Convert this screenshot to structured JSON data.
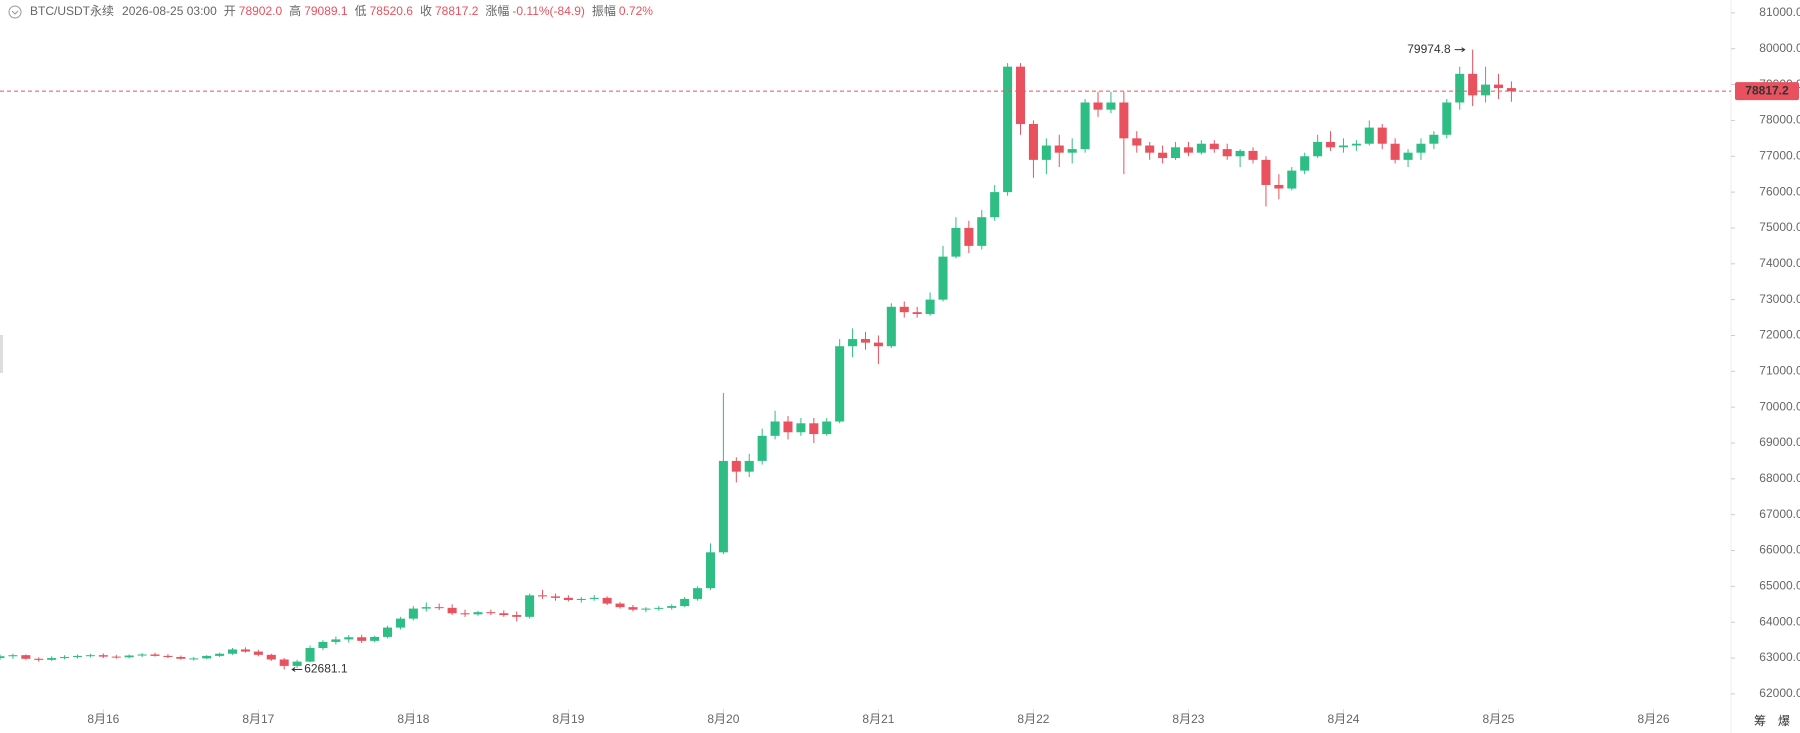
{
  "chart_data": {
    "type": "candlestick",
    "header": {
      "symbol": "BTC/USDT永续",
      "time": "2026-08-25 03:00",
      "fields": [
        {
          "label": "开",
          "value": "78902.0"
        },
        {
          "label": "高",
          "value": "79089.1"
        },
        {
          "label": "低",
          "value": "78520.6"
        },
        {
          "label": "收",
          "value": "78817.2"
        },
        {
          "label": "涨幅",
          "value": "-0.11%(-84.9)"
        },
        {
          "label": "振幅",
          "value": "0.72%"
        }
      ]
    },
    "up_color": "#2ebd85",
    "down_color": "#e8515d",
    "xlim": [
      344,
      612
    ],
    "xticks": [
      {
        "value": 360,
        "label": "8月16"
      },
      {
        "value": 384,
        "label": "8月17"
      },
      {
        "value": 408,
        "label": "8月18"
      },
      {
        "value": 432,
        "label": "8月19"
      },
      {
        "value": 456,
        "label": "8月20"
      },
      {
        "value": 480,
        "label": "8月21"
      },
      {
        "value": 504,
        "label": "8月22"
      },
      {
        "value": 528,
        "label": "8月23"
      },
      {
        "value": 552,
        "label": "8月24"
      },
      {
        "value": 576,
        "label": "8月25"
      },
      {
        "value": 600,
        "label": "8月26"
      }
    ],
    "ylim": [
      61690,
      81360
    ],
    "yticks": [
      {
        "value": 62000,
        "label": "62000.0"
      },
      {
        "value": 63000,
        "label": "63000.0"
      },
      {
        "value": 64000,
        "label": "64000.0"
      },
      {
        "value": 65000,
        "label": "65000.0"
      },
      {
        "value": 66000,
        "label": "66000.0"
      },
      {
        "value": 67000,
        "label": "67000.0"
      },
      {
        "value": 68000,
        "label": "68000.0"
      },
      {
        "value": 69000,
        "label": "69000.0"
      },
      {
        "value": 70000,
        "label": "70000.0"
      },
      {
        "value": 71000,
        "label": "71000.0"
      },
      {
        "value": 72000,
        "label": "72000.0"
      },
      {
        "value": 73000,
        "label": "73000.0"
      },
      {
        "value": 74000,
        "label": "74000.0"
      },
      {
        "value": 75000,
        "label": "75000.0"
      },
      {
        "value": 76000,
        "label": "76000.0"
      },
      {
        "value": 77000,
        "label": "77000.0"
      },
      {
        "value": 78000,
        "label": "78000.0"
      },
      {
        "value": 79000,
        "label": "79000.0"
      },
      {
        "value": 80000,
        "label": "80000.0"
      },
      {
        "value": 81000,
        "label": "81000.0"
      }
    ],
    "last_price": 78817.2,
    "max_label": 79974.8,
    "min_label": 62681.1,
    "x": [
      344,
      346,
      348,
      350,
      352,
      354,
      356,
      358,
      360,
      362,
      364,
      366,
      368,
      370,
      372,
      374,
      376,
      378,
      380,
      382,
      384,
      386,
      388,
      390,
      392,
      394,
      396,
      398,
      400,
      402,
      404,
      406,
      408,
      410,
      412,
      414,
      416,
      418,
      420,
      422,
      424,
      426,
      428,
      430,
      432,
      434,
      436,
      438,
      440,
      442,
      444,
      446,
      448,
      450,
      452,
      454,
      456,
      458,
      460,
      462,
      464,
      466,
      468,
      470,
      472,
      474,
      476,
      478,
      480,
      482,
      484,
      486,
      488,
      490,
      492,
      494,
      496,
      498,
      500,
      502,
      504,
      506,
      508,
      510,
      512,
      514,
      516,
      518,
      520,
      522,
      524,
      526,
      528,
      530,
      532,
      534,
      536,
      538,
      540,
      542,
      544,
      546,
      548,
      550,
      552,
      554,
      556,
      558,
      560,
      562,
      564,
      566,
      568,
      570,
      572,
      574,
      576,
      578
    ],
    "candles": [
      [
        63000,
        63100,
        62950,
        63050
      ],
      [
        63050,
        63120,
        62980,
        63080
      ],
      [
        63080,
        63100,
        62950,
        62980
      ],
      [
        62980,
        63020,
        62900,
        62950
      ],
      [
        62950,
        63050,
        62920,
        63000
      ],
      [
        63000,
        63080,
        62960,
        63030
      ],
      [
        63030,
        63100,
        62990,
        63060
      ],
      [
        63060,
        63120,
        63020,
        63080
      ],
      [
        63080,
        63130,
        63000,
        63040
      ],
      [
        63040,
        63090,
        62980,
        63020
      ],
      [
        63020,
        63100,
        62990,
        63070
      ],
      [
        63070,
        63140,
        63030,
        63100
      ],
      [
        63100,
        63150,
        63040,
        63060
      ],
      [
        63060,
        63110,
        63000,
        63030
      ],
      [
        63030,
        63070,
        62960,
        62980
      ],
      [
        62980,
        63030,
        62930,
        62990
      ],
      [
        62990,
        63080,
        62970,
        63060
      ],
      [
        63060,
        63150,
        63030,
        63120
      ],
      [
        63120,
        63280,
        63090,
        63240
      ],
      [
        63240,
        63300,
        63150,
        63180
      ],
      [
        63180,
        63230,
        63050,
        63090
      ],
      [
        63090,
        63120,
        62920,
        62960
      ],
      [
        62960,
        63000,
        62681.1,
        62780
      ],
      [
        62780,
        62950,
        62720,
        62900
      ],
      [
        62900,
        63350,
        62880,
        63280
      ],
      [
        63280,
        63500,
        63220,
        63450
      ],
      [
        63450,
        63600,
        63380,
        63520
      ],
      [
        63520,
        63640,
        63430,
        63580
      ],
      [
        63580,
        63650,
        63420,
        63480
      ],
      [
        63480,
        63620,
        63440,
        63590
      ],
      [
        63590,
        63900,
        63550,
        63850
      ],
      [
        63850,
        64150,
        63800,
        64100
      ],
      [
        64100,
        64450,
        64050,
        64380
      ],
      [
        64380,
        64550,
        64300,
        64420
      ],
      [
        64420,
        64520,
        64340,
        64400
      ],
      [
        64400,
        64500,
        64200,
        64250
      ],
      [
        64250,
        64350,
        64150,
        64220
      ],
      [
        64220,
        64320,
        64180,
        64280
      ],
      [
        64280,
        64350,
        64200,
        64250
      ],
      [
        64250,
        64330,
        64150,
        64200
      ],
      [
        64200,
        64300,
        64020,
        64150
      ],
      [
        64150,
        64800,
        64100,
        64750
      ],
      [
        64750,
        64900,
        64650,
        64720
      ],
      [
        64720,
        64800,
        64600,
        64680
      ],
      [
        64680,
        64750,
        64580,
        64620
      ],
      [
        64620,
        64700,
        64550,
        64650
      ],
      [
        64650,
        64760,
        64600,
        64680
      ],
      [
        64680,
        64720,
        64480,
        64520
      ],
      [
        64520,
        64560,
        64380,
        64420
      ],
      [
        64420,
        64480,
        64300,
        64350
      ],
      [
        64350,
        64420,
        64280,
        64380
      ],
      [
        64380,
        64450,
        64320,
        64400
      ],
      [
        64400,
        64500,
        64350,
        64450
      ],
      [
        64450,
        64700,
        64420,
        64650
      ],
      [
        64650,
        65000,
        64600,
        64950
      ],
      [
        64950,
        66200,
        64900,
        65950
      ],
      [
        65950,
        70400,
        65900,
        68500
      ],
      [
        68500,
        68600,
        67900,
        68200
      ],
      [
        68200,
        68700,
        68050,
        68500
      ],
      [
        68500,
        69400,
        68400,
        69200
      ],
      [
        69200,
        69900,
        69100,
        69600
      ],
      [
        69600,
        69750,
        69100,
        69300
      ],
      [
        69300,
        69700,
        69200,
        69550
      ],
      [
        69550,
        69700,
        69000,
        69250
      ],
      [
        69250,
        69700,
        69200,
        69600
      ],
      [
        69600,
        71900,
        69550,
        71700
      ],
      [
        71700,
        72200,
        71400,
        71900
      ],
      [
        71900,
        72100,
        71600,
        71800
      ],
      [
        71800,
        72000,
        71200,
        71700
      ],
      [
        71700,
        72900,
        71650,
        72800
      ],
      [
        72800,
        72950,
        72500,
        72650
      ],
      [
        72650,
        72800,
        72500,
        72600
      ],
      [
        72600,
        73200,
        72550,
        73000
      ],
      [
        73000,
        74500,
        72950,
        74200
      ],
      [
        74200,
        75300,
        74150,
        75000
      ],
      [
        75000,
        75200,
        74300,
        74500
      ],
      [
        74500,
        75500,
        74400,
        75300
      ],
      [
        75300,
        76200,
        75200,
        76000
      ],
      [
        76000,
        79600,
        75900,
        79500
      ],
      [
        79500,
        79600,
        77600,
        77900
      ],
      [
        77900,
        78000,
        76400,
        76900
      ],
      [
        76900,
        77500,
        76500,
        77300
      ],
      [
        77300,
        77600,
        76700,
        77100
      ],
      [
        77100,
        77500,
        76800,
        77200
      ],
      [
        77200,
        78600,
        77100,
        78500
      ],
      [
        78500,
        78800,
        78100,
        78300
      ],
      [
        78300,
        78800,
        78200,
        78500
      ],
      [
        78500,
        78800,
        76500,
        77500
      ],
      [
        77500,
        77700,
        77100,
        77300
      ],
      [
        77300,
        77400,
        76900,
        77100
      ],
      [
        77100,
        77300,
        76800,
        76950
      ],
      [
        76950,
        77400,
        76900,
        77250
      ],
      [
        77250,
        77400,
        77000,
        77100
      ],
      [
        77100,
        77450,
        77050,
        77350
      ],
      [
        77350,
        77450,
        77100,
        77200
      ],
      [
        77200,
        77350,
        76900,
        77000
      ],
      [
        77000,
        77200,
        76700,
        77150
      ],
      [
        77150,
        77250,
        76800,
        76900
      ],
      [
        76900,
        77000,
        75600,
        76200
      ],
      [
        76200,
        76500,
        75800,
        76100
      ],
      [
        76100,
        76700,
        76050,
        76600
      ],
      [
        76600,
        77100,
        76500,
        77000
      ],
      [
        77000,
        77600,
        76950,
        77400
      ],
      [
        77400,
        77700,
        77150,
        77250
      ],
      [
        77250,
        77500,
        77100,
        77300
      ],
      [
        77300,
        77450,
        77150,
        77350
      ],
      [
        77350,
        78000,
        77300,
        77800
      ],
      [
        77800,
        77900,
        77200,
        77350
      ],
      [
        77350,
        77500,
        76800,
        76900
      ],
      [
        76900,
        77200,
        76700,
        77100
      ],
      [
        77100,
        77500,
        76900,
        77350
      ],
      [
        77350,
        77700,
        77200,
        77600
      ],
      [
        77600,
        78600,
        77500,
        78500
      ],
      [
        78500,
        79500,
        78300,
        79300
      ],
      [
        79300,
        79974.8,
        78400,
        78700
      ],
      [
        78700,
        79500,
        78500,
        79000
      ],
      [
        79000,
        79300,
        78600,
        78902
      ],
      [
        78902,
        79089.1,
        78520.6,
        78817.2
      ]
    ],
    "icons": [
      "筹",
      "爆"
    ]
  }
}
